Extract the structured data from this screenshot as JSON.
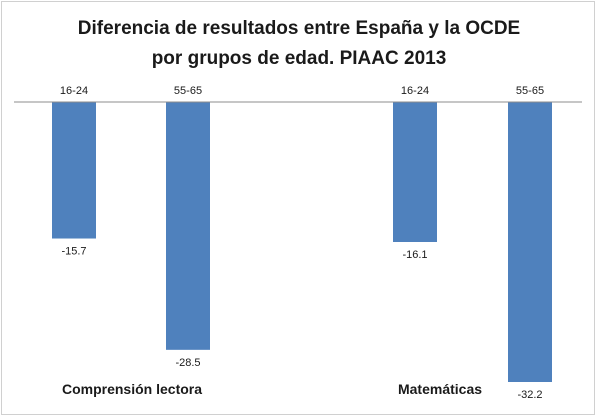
{
  "chart_data": {
    "type": "bar",
    "title": "Diferencia de resultados entre España y la OCDE por grupos de edad. PIAAC 2013",
    "title_lines": [
      "Diferencia de resultados entre España y la OCDE",
      "por grupos de edad. PIAAC 2013"
    ],
    "categories": [
      "16-24",
      "55-65",
      "16-24",
      "55-65"
    ],
    "groups": [
      {
        "label": "Comprensión lectora",
        "categories": [
          "16-24",
          "55-65"
        ],
        "values": [
          -15.7,
          -28.5
        ]
      },
      {
        "label": "Matemáticas",
        "categories": [
          "16-24",
          "55-65"
        ],
        "values": [
          -16.1,
          -32.2
        ]
      }
    ],
    "values": [
      -15.7,
      -28.5,
      -16.1,
      -32.2
    ],
    "value_labels": [
      "-15.7",
      "-28.5",
      "-16.1",
      "-32.2"
    ],
    "xlabel": "",
    "ylabel": "",
    "ylim": [
      -32.2,
      0
    ],
    "grid": false,
    "legend": false,
    "bar_color": "#4f81bd",
    "axis_color": "#8c8c8c"
  }
}
